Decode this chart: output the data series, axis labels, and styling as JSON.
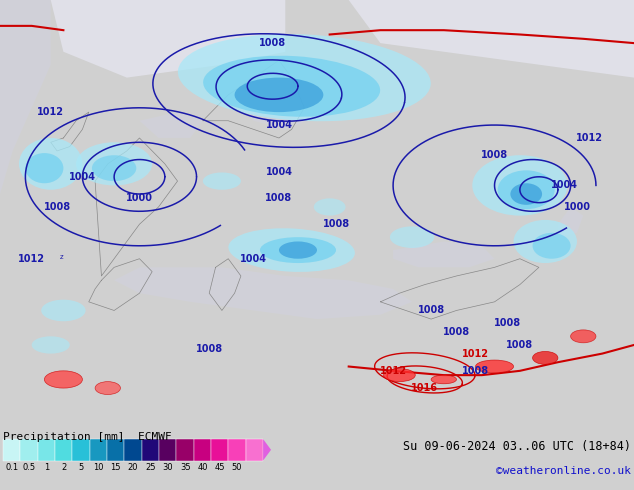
{
  "title_left": "Precipitation [mm]  ECMWF",
  "title_right_line1": "Su 09-06-2024 03..06 UTC (18+84)",
  "title_right_line2": "©weatheronline.co.uk",
  "cb_labels": [
    "0.1",
    "0.5",
    "1",
    "2",
    "5",
    "10",
    "15",
    "20",
    "25",
    "30",
    "35",
    "40",
    "45",
    "50"
  ],
  "cb_colors": [
    "#c8f5f5",
    "#a0eeee",
    "#78e6e8",
    "#50dce0",
    "#28c0d8",
    "#1898c0",
    "#0870a8",
    "#004890",
    "#200878",
    "#580060",
    "#980068",
    "#c80080",
    "#e81098",
    "#f840b8",
    "#f870d0"
  ],
  "land_color": "#c8e8a0",
  "sea_color": "#d0d0d8",
  "bg_color": "#d0d0d0",
  "isobar_blue": "#1a1aaa",
  "isobar_red": "#cc0000",
  "precip_light": "#a8e8f8",
  "precip_mid": "#70d0f0",
  "precip_dark": "#3098d8",
  "figure_width": 6.34,
  "figure_height": 4.9,
  "dpi": 100
}
